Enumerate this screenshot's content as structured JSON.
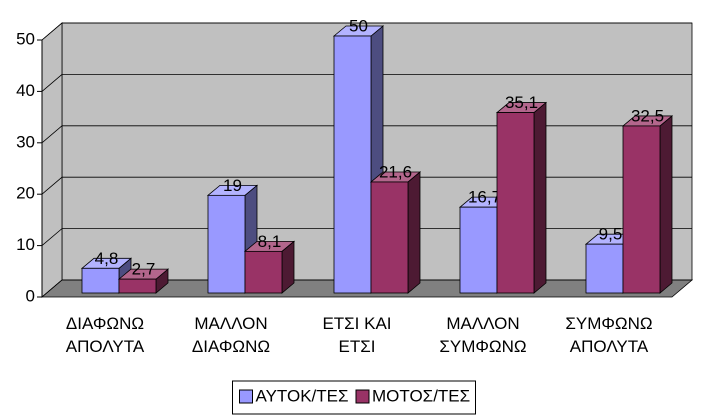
{
  "chart_data": {
    "type": "bar3d",
    "categories": [
      "ΔΙΑΦΩΝΩ\nΑΠΟΛΥΤΑ",
      "ΜΑΛΛΟΝ\nΔΙΑΦΩΝΩ",
      "ΕΤΣΙ ΚΑΙ\nΕΤΣΙ",
      "ΜΑΛΛΟΝ\nΣΥΜΦΩΝΩ",
      "ΣΥΜΦΩΝΩ\nΑΠΟΛΥΤΑ"
    ],
    "series": [
      {
        "name": "ΑΥΤΟΚ/ΤΕΣ",
        "color": "#9999ff",
        "values": [
          4.8,
          19,
          50,
          16.7,
          9.5
        ],
        "value_labels": [
          "4,8",
          "19",
          "50",
          "16,7",
          "9,5"
        ]
      },
      {
        "name": "ΜΟΤΟΣ/ΤΕΣ",
        "color": "#993366",
        "values": [
          2.7,
          8.1,
          21.6,
          35.1,
          32.5
        ],
        "value_labels": [
          "2,7",
          "8,1",
          "21,6",
          "35,1",
          "32,5"
        ]
      }
    ],
    "ylim": [
      0,
      50
    ],
    "yticks": [
      0,
      10,
      20,
      30,
      40,
      50
    ],
    "grid": true,
    "legend": "bottom"
  }
}
